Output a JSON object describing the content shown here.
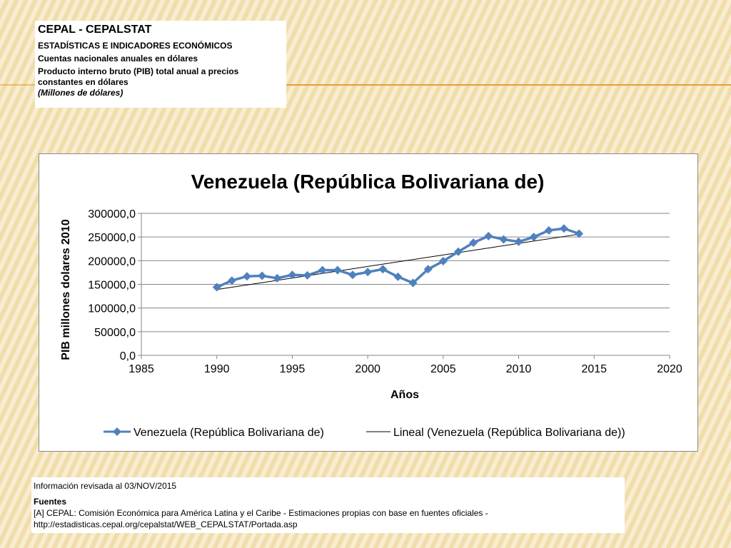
{
  "header": {
    "title": "CEPAL - CEPALSTAT",
    "subtitle": "ESTADÍSTICAS E INDICADORES ECONÓMICOS",
    "line1": "Cuentas nacionales anuales en dólares",
    "line2": "Producto interno bruto (PIB) total anual a precios constantes en dólares",
    "unit": "(Millones de dólares)"
  },
  "footer": {
    "revised": "Información revisada al 03/NOV/2015",
    "sources_label": "Fuentes",
    "source_text": "[A] CEPAL: Comisión Económica para América Latina y el Caribe - Estimaciones propias con base en fuentes oficiales - http://estadisticas.cepal.org/cepalstat/WEB_CEPALSTAT/Portada.asp"
  },
  "colors": {
    "series": "#4f81bd",
    "trend": "#000000",
    "grid": "#868686",
    "accent": "#e3a03a"
  },
  "chart_data": {
    "type": "line",
    "title": "Venezuela (República Bolivariana de)",
    "xlabel": "Años",
    "ylabel": "PIB millones dolares 2010",
    "xlim": [
      1985,
      2020
    ],
    "ylim": [
      0,
      300000
    ],
    "x_ticks": [
      1985,
      1990,
      1995,
      2000,
      2005,
      2010,
      2015,
      2020
    ],
    "y_ticks": [
      0,
      50000,
      100000,
      150000,
      200000,
      250000,
      300000
    ],
    "y_tick_labels": [
      "0,0",
      "50000,0",
      "100000,0",
      "150000,0",
      "200000,0",
      "250000,0",
      "300000,0"
    ],
    "grid": "horizontal",
    "legend_position": "bottom",
    "series": [
      {
        "name": "Venezuela (República Bolivariana de)",
        "marker": "diamond",
        "x": [
          1990,
          1991,
          1992,
          1993,
          1994,
          1995,
          1996,
          1997,
          1998,
          1999,
          2000,
          2001,
          2002,
          2003,
          2004,
          2005,
          2006,
          2007,
          2008,
          2009,
          2010,
          2011,
          2012,
          2013,
          2014
        ],
        "y": [
          144000,
          158000,
          167000,
          168000,
          163000,
          170000,
          169000,
          180000,
          180000,
          170000,
          176000,
          182000,
          166000,
          153000,
          182000,
          199000,
          219000,
          238000,
          252000,
          245000,
          240000,
          250000,
          264000,
          268000,
          257000
        ]
      },
      {
        "name": "Lineal (Venezuela  (República Bolivariana de))",
        "type": "trendline",
        "x": [
          1990,
          2014
        ],
        "y": [
          139000,
          256000
        ]
      }
    ]
  }
}
